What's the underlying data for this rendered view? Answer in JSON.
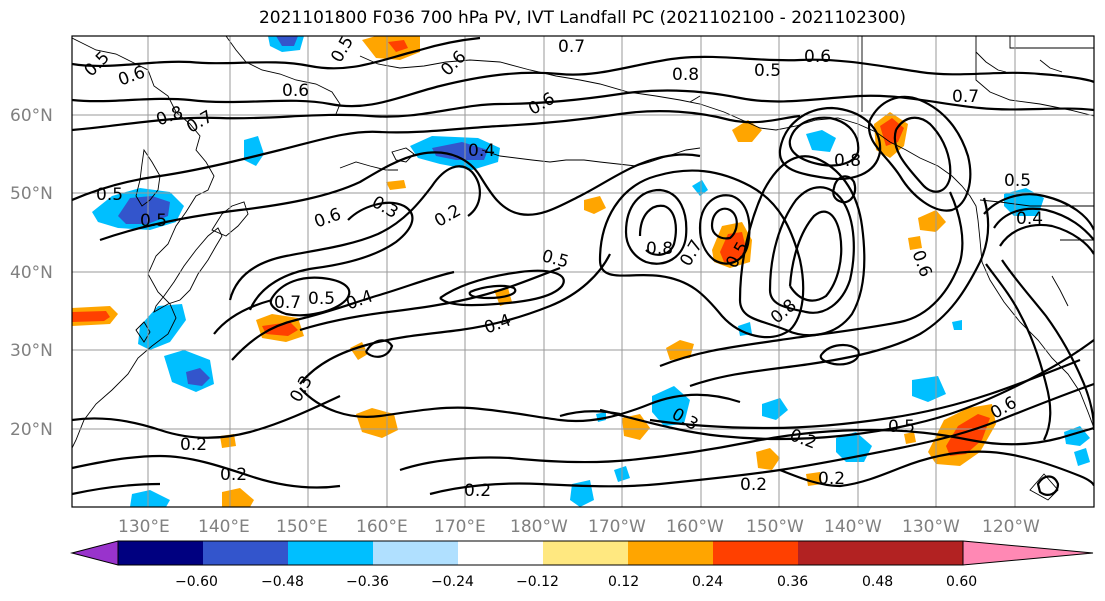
{
  "title": "2021101800 F036 700 hPa PV, IVT Landfall PC (2021102100 - 2021102300)",
  "lat_labels": [
    {
      "text": "60°N",
      "lat": 60
    },
    {
      "text": "50°N",
      "lat": 50
    },
    {
      "text": "40°N",
      "lat": 40
    },
    {
      "text": "30°N",
      "lat": 30
    },
    {
      "text": "20°N",
      "lat": 20
    }
  ],
  "lon_labels": [
    "130°E",
    "140°E",
    "150°E",
    "160°E",
    "170°E",
    "180°W",
    "170°W",
    "160°W",
    "150°W",
    "140°W",
    "130°W",
    "120°W"
  ],
  "colorbar": {
    "colors": [
      "#9933cc",
      "#000080",
      "#3355cc",
      "#00bfff",
      "#b0e0ff",
      "#ffffff",
      "#ffe880",
      "#ffa500",
      "#ff4000",
      "#b22222",
      "#ff88b4"
    ],
    "ticks": [
      "−0.60",
      "−0.48",
      "−0.36",
      "−0.24",
      "−0.12",
      "0.12",
      "0.24",
      "0.36",
      "0.48",
      "0.60"
    ]
  },
  "contour_labels": [
    "0.5",
    "0.6",
    "0.8",
    "0.7",
    "0.5",
    "0.6",
    "0.5",
    "0.6",
    "0.7",
    "0.6",
    "0.5",
    "0.6",
    "0.7",
    "0.8",
    "0.4",
    "0.3",
    "0.2",
    "0.6",
    "0.5",
    "0.7",
    "0.5",
    "0.4",
    "0.5",
    "0.4",
    "0.8",
    "0.7",
    "0.5",
    "0.8",
    "0.8",
    "0.6",
    "0.3",
    "0.2",
    "0.2",
    "0.2",
    "0.2",
    "0.3",
    "0.2",
    "0.5",
    "0.6",
    "0.2",
    "0.5",
    "0.4"
  ],
  "fill_colors": {
    "neg_strong": "#3355cc",
    "neg_mid": "#00bfff",
    "neg_weak": "#b0e0ff",
    "pos_weak": "#ffe880",
    "pos_mid": "#ffa500",
    "pos_strong": "#ff4000"
  }
}
